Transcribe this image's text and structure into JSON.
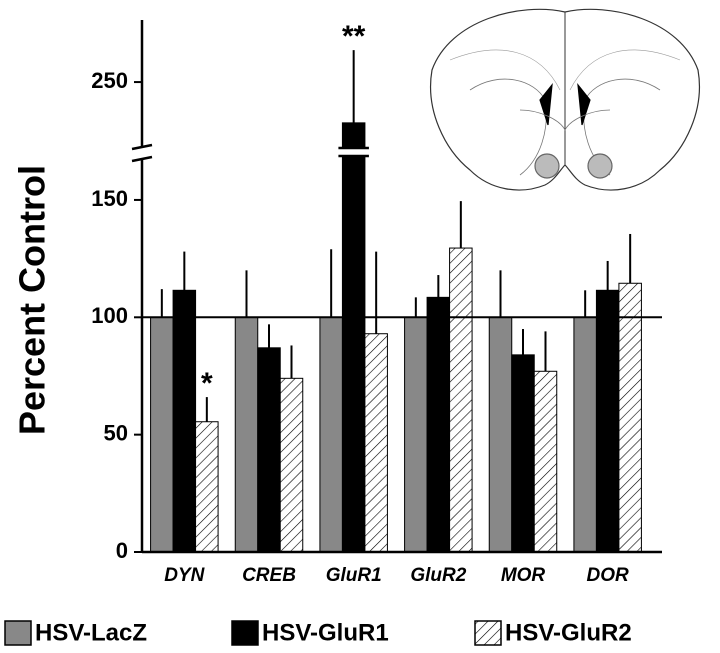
{
  "chart_data": {
    "type": "bar",
    "ylabel": "Percent Control",
    "categories": [
      "DYN",
      "CREB",
      "GluR1",
      "GluR2",
      "MOR",
      "DOR"
    ],
    "series": [
      {
        "name": "HSV-LacZ",
        "color": "#888888",
        "values": [
          100,
          100,
          100,
          100,
          100,
          100
        ],
        "errors": [
          12,
          20,
          29,
          8.5,
          20,
          11.5
        ]
      },
      {
        "name": "HSV-GluR1",
        "color": "#000000",
        "values": [
          111.5,
          87,
          227,
          108.5,
          84,
          111.5
        ],
        "errors": [
          16.5,
          10,
          41,
          9.5,
          11,
          12.5
        ]
      },
      {
        "name": "HSV-GluR2",
        "color": "hatch",
        "values": [
          55.5,
          74,
          93,
          129.5,
          77,
          114.5
        ],
        "errors": [
          10.5,
          14,
          35,
          20,
          17,
          21
        ]
      }
    ],
    "ylim": [
      0,
      285
    ],
    "ybreak": [
      170,
      210
    ],
    "yticks": [
      0,
      50,
      100,
      150,
      250
    ],
    "reference_line": 100,
    "annotations": [
      {
        "text": "*"
      },
      {
        "text": "**"
      }
    ]
  }
}
